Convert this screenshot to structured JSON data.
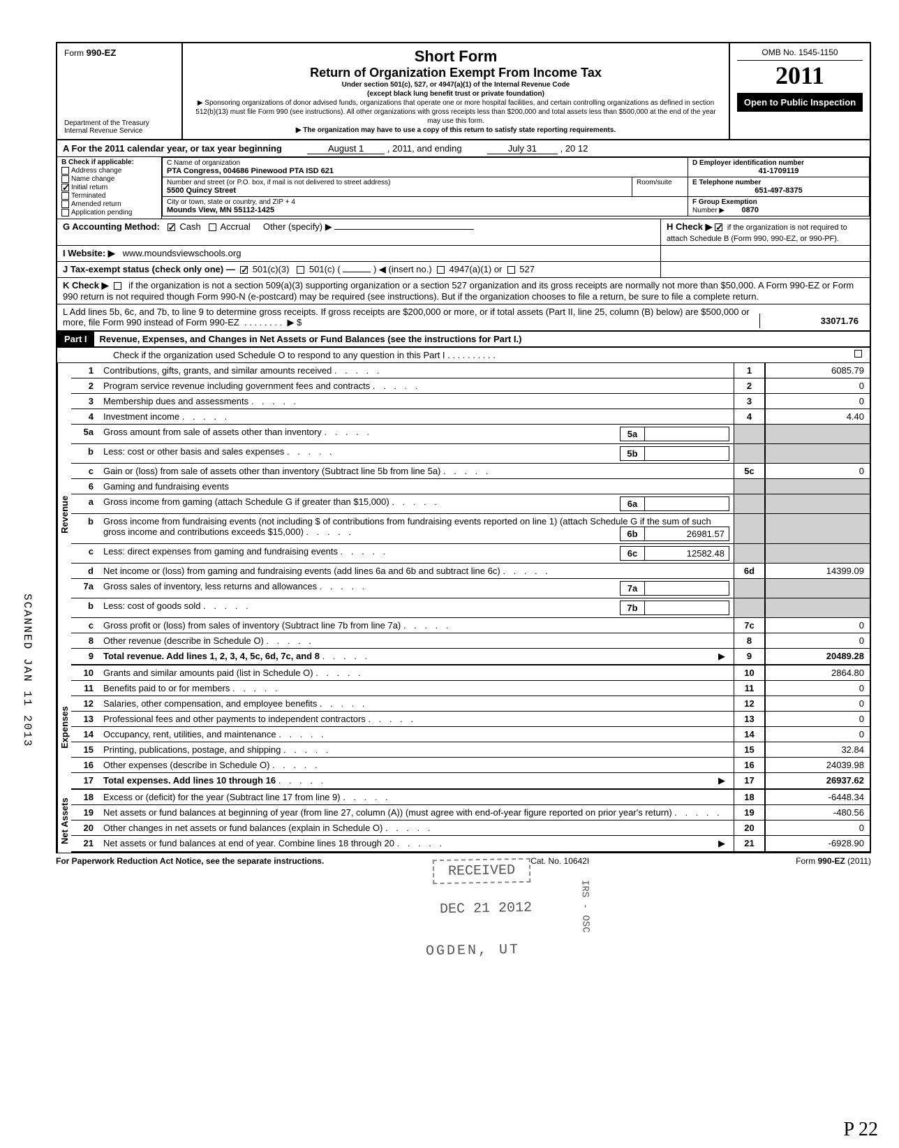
{
  "header": {
    "form_prefix": "Form",
    "form_number": "990-EZ",
    "dept1": "Department of the Treasury",
    "dept2": "Internal Revenue Service",
    "title": "Short Form",
    "subtitle": "Return of Organization Exempt From Income Tax",
    "line1": "Under section 501(c), 527, or 4947(a)(1) of the Internal Revenue Code",
    "line2": "(except black lung benefit trust or private foundation)",
    "line3": "▶ Sponsoring organizations of donor advised funds, organizations that operate one or more hospital facilities, and certain controlling organizations as defined in section 512(b)(13) must file Form 990 (see instructions). All other organizations with gross receipts less than $200,000 and total assets less than $500,000 at the end of the year may use this form.",
    "line4": "▶ The organization may have to use a copy of this return to satisfy state reporting requirements.",
    "omb": "OMB No. 1545-1150",
    "year_outline": "2011",
    "open": "Open to Public Inspection"
  },
  "secA": {
    "label": "A  For the 2011 calendar year, or tax year beginning",
    "begin": "August 1",
    "mid": ", 2011, and ending",
    "end": "July 31",
    "yr": ", 20   12"
  },
  "secB": {
    "heading": "B  Check if applicable:",
    "items": [
      "Address change",
      "Name change",
      "Initial return",
      "Terminated",
      "Amended return",
      "Application pending"
    ],
    "checked_idx": 2
  },
  "secC": {
    "c_label": "C  Name of organization",
    "name": "PTA Congress, 004686 Pinewood PTA ISD 621",
    "addr_label": "Number and street (or P.O. box, if mail is not delivered to street address)",
    "room_label": "Room/suite",
    "street": "5500 Quincy Street",
    "city_label": "City or town, state or country, and ZIP + 4",
    "city": "Mounds View, MN 55112-1425"
  },
  "secD": {
    "label": "D Employer identification number",
    "value": "41-1709119"
  },
  "secE": {
    "label": "E  Telephone number",
    "value": "651-497-8375"
  },
  "secF": {
    "label": "F  Group Exemption",
    "num_label": "Number ▶",
    "value": "0870"
  },
  "secG": {
    "label": "G  Accounting Method:",
    "cash": "Cash",
    "accrual": "Accrual",
    "other": "Other (specify) ▶"
  },
  "secH": {
    "label": "H  Check ▶",
    "text": "if the organization is not required to attach Schedule B (Form 990, 990-EZ, or 990-PF)."
  },
  "secI": {
    "label": "I   Website: ▶",
    "value": "www.moundsviewschools.org"
  },
  "secJ": {
    "label": "J  Tax-exempt status (check only one) —",
    "a": "501(c)(3)",
    "b": "501(c) (",
    "c": ") ◀ (insert no.)",
    "d": "4947(a)(1) or",
    "e": "527"
  },
  "secK": {
    "label": "K  Check ▶",
    "text": "if the organization is not a section 509(a)(3) supporting organization or a section 527 organization and its gross receipts are normally not more than $50,000. A Form 990-EZ or Form 990 return is not required though Form 990-N (e-postcard) may be required (see instructions). But if the organization chooses to file a return, be sure to file a complete return."
  },
  "secL": {
    "text": "L  Add lines 5b, 6c, and 7b, to line 9 to determine gross receipts. If gross receipts are $200,000 or more, or if total assets (Part II, line 25, column (B) below) are $500,000 or more, file Form 990 instead of Form 990-EZ",
    "arrow": "▶  $",
    "value": "33071.76"
  },
  "part1": {
    "tag": "Part I",
    "title": "Revenue, Expenses, and Changes in Net Assets or Fund Balances (see the instructions for Part I.)",
    "check_line": "Check if the organization used Schedule O to respond to any question in this Part I"
  },
  "groups": {
    "revenue": "Revenue",
    "expenses": "Expenses",
    "netassets": "Net Assets"
  },
  "lines": [
    {
      "g": "revenue",
      "n": "1",
      "d": "Contributions, gifts, grants, and similar amounts received",
      "box": "1",
      "v": "6085.79"
    },
    {
      "g": "revenue",
      "n": "2",
      "d": "Program service revenue including government fees and contracts",
      "box": "2",
      "v": "0"
    },
    {
      "g": "revenue",
      "n": "3",
      "d": "Membership dues and assessments",
      "box": "3",
      "v": "0"
    },
    {
      "g": "revenue",
      "n": "4",
      "d": "Investment income",
      "box": "4",
      "v": "4.40"
    },
    {
      "g": "revenue",
      "n": "5a",
      "d": "Gross amount from sale of assets other than inventory",
      "mid": "5a",
      "mv": ""
    },
    {
      "g": "revenue",
      "n": "b",
      "d": "Less: cost or other basis and sales expenses",
      "mid": "5b",
      "mv": ""
    },
    {
      "g": "revenue",
      "n": "c",
      "d": "Gain or (loss) from sale of assets other than inventory (Subtract line 5b from line 5a)",
      "box": "5c",
      "v": "0"
    },
    {
      "g": "revenue",
      "n": "6",
      "d": "Gaming and fundraising events"
    },
    {
      "g": "revenue",
      "n": "a",
      "d": "Gross income from gaming (attach Schedule G if greater than $15,000)",
      "mid": "6a",
      "mv": ""
    },
    {
      "g": "revenue",
      "n": "b",
      "d": "Gross income from fundraising events (not including  $                              of contributions from fundraising events reported on line 1) (attach Schedule G if the sum of such gross income and contributions exceeds $15,000)",
      "mid": "6b",
      "mv": "26981.57"
    },
    {
      "g": "revenue",
      "n": "c",
      "d": "Less: direct expenses from gaming and fundraising events",
      "mid": "6c",
      "mv": "12582.48"
    },
    {
      "g": "revenue",
      "n": "d",
      "d": "Net income or (loss) from gaming and fundraising events (add lines 6a and 6b and subtract line 6c)",
      "box": "6d",
      "v": "14399.09"
    },
    {
      "g": "revenue",
      "n": "7a",
      "d": "Gross sales of inventory, less returns and allowances",
      "mid": "7a",
      "mv": ""
    },
    {
      "g": "revenue",
      "n": "b",
      "d": "Less: cost of goods sold",
      "mid": "7b",
      "mv": ""
    },
    {
      "g": "revenue",
      "n": "c",
      "d": "Gross profit or (loss) from sales of inventory (Subtract line 7b from line 7a)",
      "box": "7c",
      "v": "0"
    },
    {
      "g": "revenue",
      "n": "8",
      "d": "Other revenue (describe in Schedule O)",
      "box": "8",
      "v": "0"
    },
    {
      "g": "revenue",
      "n": "9",
      "d": "Total revenue. Add lines 1, 2, 3, 4, 5c, 6d, 7c, and 8",
      "box": "9",
      "v": "20489.28",
      "bold": true,
      "arrow": true
    },
    {
      "g": "expenses",
      "n": "10",
      "d": "Grants and similar amounts paid (list in Schedule O)",
      "box": "10",
      "v": "2864.80"
    },
    {
      "g": "expenses",
      "n": "11",
      "d": "Benefits paid to or for members",
      "box": "11",
      "v": "0"
    },
    {
      "g": "expenses",
      "n": "12",
      "d": "Salaries, other compensation, and employee benefits",
      "box": "12",
      "v": "0"
    },
    {
      "g": "expenses",
      "n": "13",
      "d": "Professional fees and other payments to independent contractors",
      "box": "13",
      "v": "0"
    },
    {
      "g": "expenses",
      "n": "14",
      "d": "Occupancy, rent, utilities, and maintenance",
      "box": "14",
      "v": "0"
    },
    {
      "g": "expenses",
      "n": "15",
      "d": "Printing, publications, postage, and shipping",
      "box": "15",
      "v": "32.84"
    },
    {
      "g": "expenses",
      "n": "16",
      "d": "Other expenses (describe in Schedule O)",
      "box": "16",
      "v": "24039.98"
    },
    {
      "g": "expenses",
      "n": "17",
      "d": "Total expenses. Add lines 10 through 16",
      "box": "17",
      "v": "26937.62",
      "bold": true,
      "arrow": true
    },
    {
      "g": "netassets",
      "n": "18",
      "d": "Excess or (deficit) for the year (Subtract line 17 from line 9)",
      "box": "18",
      "v": "-6448.34"
    },
    {
      "g": "netassets",
      "n": "19",
      "d": "Net assets or fund balances at beginning of year (from line 27, column (A)) (must agree with end-of-year figure reported on prior year's return)",
      "box": "19",
      "v": "-480.56"
    },
    {
      "g": "netassets",
      "n": "20",
      "d": "Other changes in net assets or fund balances (explain in Schedule O)",
      "box": "20",
      "v": "0"
    },
    {
      "g": "netassets",
      "n": "21",
      "d": "Net assets or fund balances at end of year. Combine lines 18 through 20",
      "box": "21",
      "v": "-6928.90",
      "arrow": true
    }
  ],
  "footer": {
    "left": "For Paperwork Reduction Act Notice, see the separate instructions.",
    "mid": "Cat. No. 10642I",
    "right": "Form 990-EZ (2011)"
  },
  "stamps": {
    "received": "RECEIVED",
    "date": "DEC 21 2012",
    "place": "OGDEN, UT",
    "irs": "IRS - OSC"
  },
  "side": "SCANNED JAN 11 2013",
  "hand": "P 22"
}
